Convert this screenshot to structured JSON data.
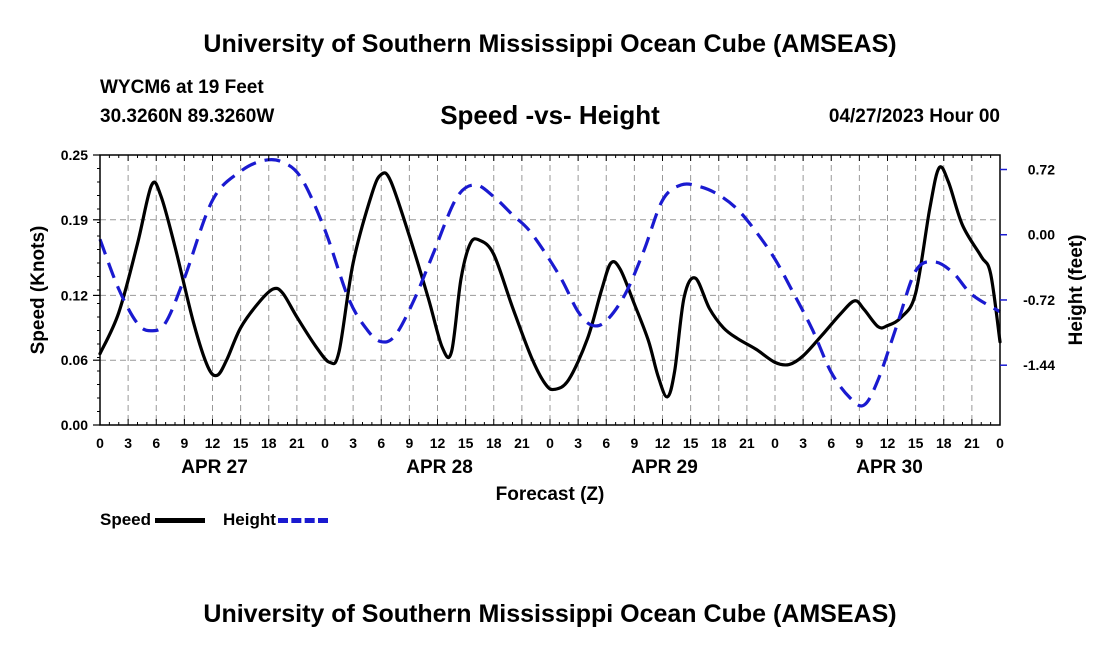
{
  "header": {
    "title_top": "University of Southern Mississippi Ocean Cube (AMSEAS)",
    "title_bottom": "University of Southern Mississippi Ocean Cube (AMSEAS)",
    "station": "WYCM6 at 19 Feet",
    "coords": "30.3260N  89.3260W",
    "subtitle": "Speed -vs- Height",
    "date": "04/27/2023 Hour 00"
  },
  "legend": {
    "speed_label": "Speed",
    "height_label": "Height"
  },
  "colors": {
    "speed": "#000000",
    "height": "#1a1ad0",
    "grid": "#999999"
  },
  "chart_data": {
    "type": "line",
    "title": "Speed -vs- Height",
    "xlabel": "Forecast (Z)",
    "ylabel_left": "Speed (Knots)",
    "ylabel_right": "Height (feet)",
    "x_range_hours": [
      0,
      96
    ],
    "x_tick_labels": [
      "0",
      "3",
      "6",
      "9",
      "12",
      "15",
      "18",
      "21",
      "0",
      "3",
      "6",
      "9",
      "12",
      "15",
      "18",
      "21",
      "0",
      "3",
      "6",
      "9",
      "12",
      "15",
      "18",
      "21",
      "0",
      "3",
      "6",
      "9",
      "12",
      "15",
      "18",
      "21",
      "0"
    ],
    "day_labels": [
      {
        "label": "APR 27",
        "hour": 12
      },
      {
        "label": "APR 28",
        "hour": 36
      },
      {
        "label": "APR 29",
        "hour": 60
      },
      {
        "label": "APR 30",
        "hour": 84
      }
    ],
    "y_left": {
      "min": 0.0,
      "max": 0.25,
      "ticks": [
        "0.00",
        "0.06",
        "0.12",
        "0.19",
        "0.25"
      ]
    },
    "y_right": {
      "min": -2.1,
      "max": 0.88,
      "ticks": [
        "0.72",
        "0.00",
        "-0.72",
        "-1.44"
      ],
      "tick_values": [
        0.72,
        0.0,
        -0.72,
        -1.44
      ]
    },
    "series": [
      {
        "name": "Speed",
        "axis": "left",
        "style": "solid",
        "points": [
          [
            0,
            0.066
          ],
          [
            2,
            0.104
          ],
          [
            4,
            0.168
          ],
          [
            5.5,
            0.222
          ],
          [
            6.5,
            0.212
          ],
          [
            8,
            0.165
          ],
          [
            10,
            0.094
          ],
          [
            11.5,
            0.054
          ],
          [
            12.5,
            0.046
          ],
          [
            13.5,
            0.06
          ],
          [
            15,
            0.09
          ],
          [
            17,
            0.114
          ],
          [
            18.5,
            0.126
          ],
          [
            19.5,
            0.122
          ],
          [
            21,
            0.1
          ],
          [
            23,
            0.073
          ],
          [
            24.5,
            0.058
          ],
          [
            25.5,
            0.068
          ],
          [
            27,
            0.15
          ],
          [
            29,
            0.214
          ],
          [
            30,
            0.232
          ],
          [
            31,
            0.226
          ],
          [
            33,
            0.175
          ],
          [
            35,
            0.118
          ],
          [
            36.5,
            0.072
          ],
          [
            37.5,
            0.068
          ],
          [
            38.5,
            0.135
          ],
          [
            39.5,
            0.168
          ],
          [
            40.5,
            0.171
          ],
          [
            42,
            0.158
          ],
          [
            44,
            0.109
          ],
          [
            46,
            0.063
          ],
          [
            47.5,
            0.038
          ],
          [
            48.5,
            0.033
          ],
          [
            50,
            0.042
          ],
          [
            52,
            0.08
          ],
          [
            53.5,
            0.125
          ],
          [
            54.5,
            0.15
          ],
          [
            55.5,
            0.144
          ],
          [
            57,
            0.112
          ],
          [
            58.5,
            0.078
          ],
          [
            59.5,
            0.046
          ],
          [
            60.5,
            0.026
          ],
          [
            61.3,
            0.05
          ],
          [
            62.3,
            0.118
          ],
          [
            63.5,
            0.136
          ],
          [
            65,
            0.108
          ],
          [
            66.5,
            0.09
          ],
          [
            68,
            0.08
          ],
          [
            70,
            0.07
          ],
          [
            72,
            0.058
          ],
          [
            73.5,
            0.056
          ],
          [
            75,
            0.064
          ],
          [
            77,
            0.083
          ],
          [
            79,
            0.103
          ],
          [
            80.5,
            0.115
          ],
          [
            81.5,
            0.107
          ],
          [
            83,
            0.091
          ],
          [
            84,
            0.092
          ],
          [
            85.5,
            0.1
          ],
          [
            87,
            0.122
          ],
          [
            88.5,
            0.2
          ],
          [
            89.5,
            0.238
          ],
          [
            90.5,
            0.225
          ],
          [
            92,
            0.185
          ],
          [
            94,
            0.156
          ],
          [
            95,
            0.14
          ],
          [
            96,
            0.077
          ]
        ]
      },
      {
        "name": "Height",
        "axis": "right",
        "style": "dashed",
        "points": [
          [
            0,
            -0.05
          ],
          [
            2,
            -0.6
          ],
          [
            4,
            -0.98
          ],
          [
            5.5,
            -1.06
          ],
          [
            7,
            -0.97
          ],
          [
            9,
            -0.48
          ],
          [
            12,
            0.38
          ],
          [
            15,
            0.7
          ],
          [
            17.5,
            0.82
          ],
          [
            19.5,
            0.8
          ],
          [
            21.5,
            0.62
          ],
          [
            24,
            0.05
          ],
          [
            26.5,
            -0.7
          ],
          [
            28.5,
            -1.05
          ],
          [
            30,
            -1.18
          ],
          [
            31.5,
            -1.11
          ],
          [
            33.5,
            -0.72
          ],
          [
            35.5,
            -0.22
          ],
          [
            38,
            0.4
          ],
          [
            40,
            0.55
          ],
          [
            42,
            0.42
          ],
          [
            44,
            0.22
          ],
          [
            46,
            0.02
          ],
          [
            49,
            -0.45
          ],
          [
            51,
            -0.85
          ],
          [
            52.5,
            -1.0
          ],
          [
            54,
            -0.95
          ],
          [
            56,
            -0.66
          ],
          [
            58,
            -0.18
          ],
          [
            60,
            0.38
          ],
          [
            62,
            0.55
          ],
          [
            64,
            0.53
          ],
          [
            66,
            0.44
          ],
          [
            68,
            0.28
          ],
          [
            70,
            0.03
          ],
          [
            72,
            -0.27
          ],
          [
            74,
            -0.65
          ],
          [
            76,
            -1.05
          ],
          [
            78,
            -1.52
          ],
          [
            80,
            -1.8
          ],
          [
            81.5,
            -1.88
          ],
          [
            83,
            -1.6
          ],
          [
            85,
            -1.0
          ],
          [
            87,
            -0.4
          ],
          [
            89,
            -0.3
          ],
          [
            91,
            -0.42
          ],
          [
            93,
            -0.66
          ],
          [
            96,
            -0.85
          ]
        ]
      }
    ]
  }
}
